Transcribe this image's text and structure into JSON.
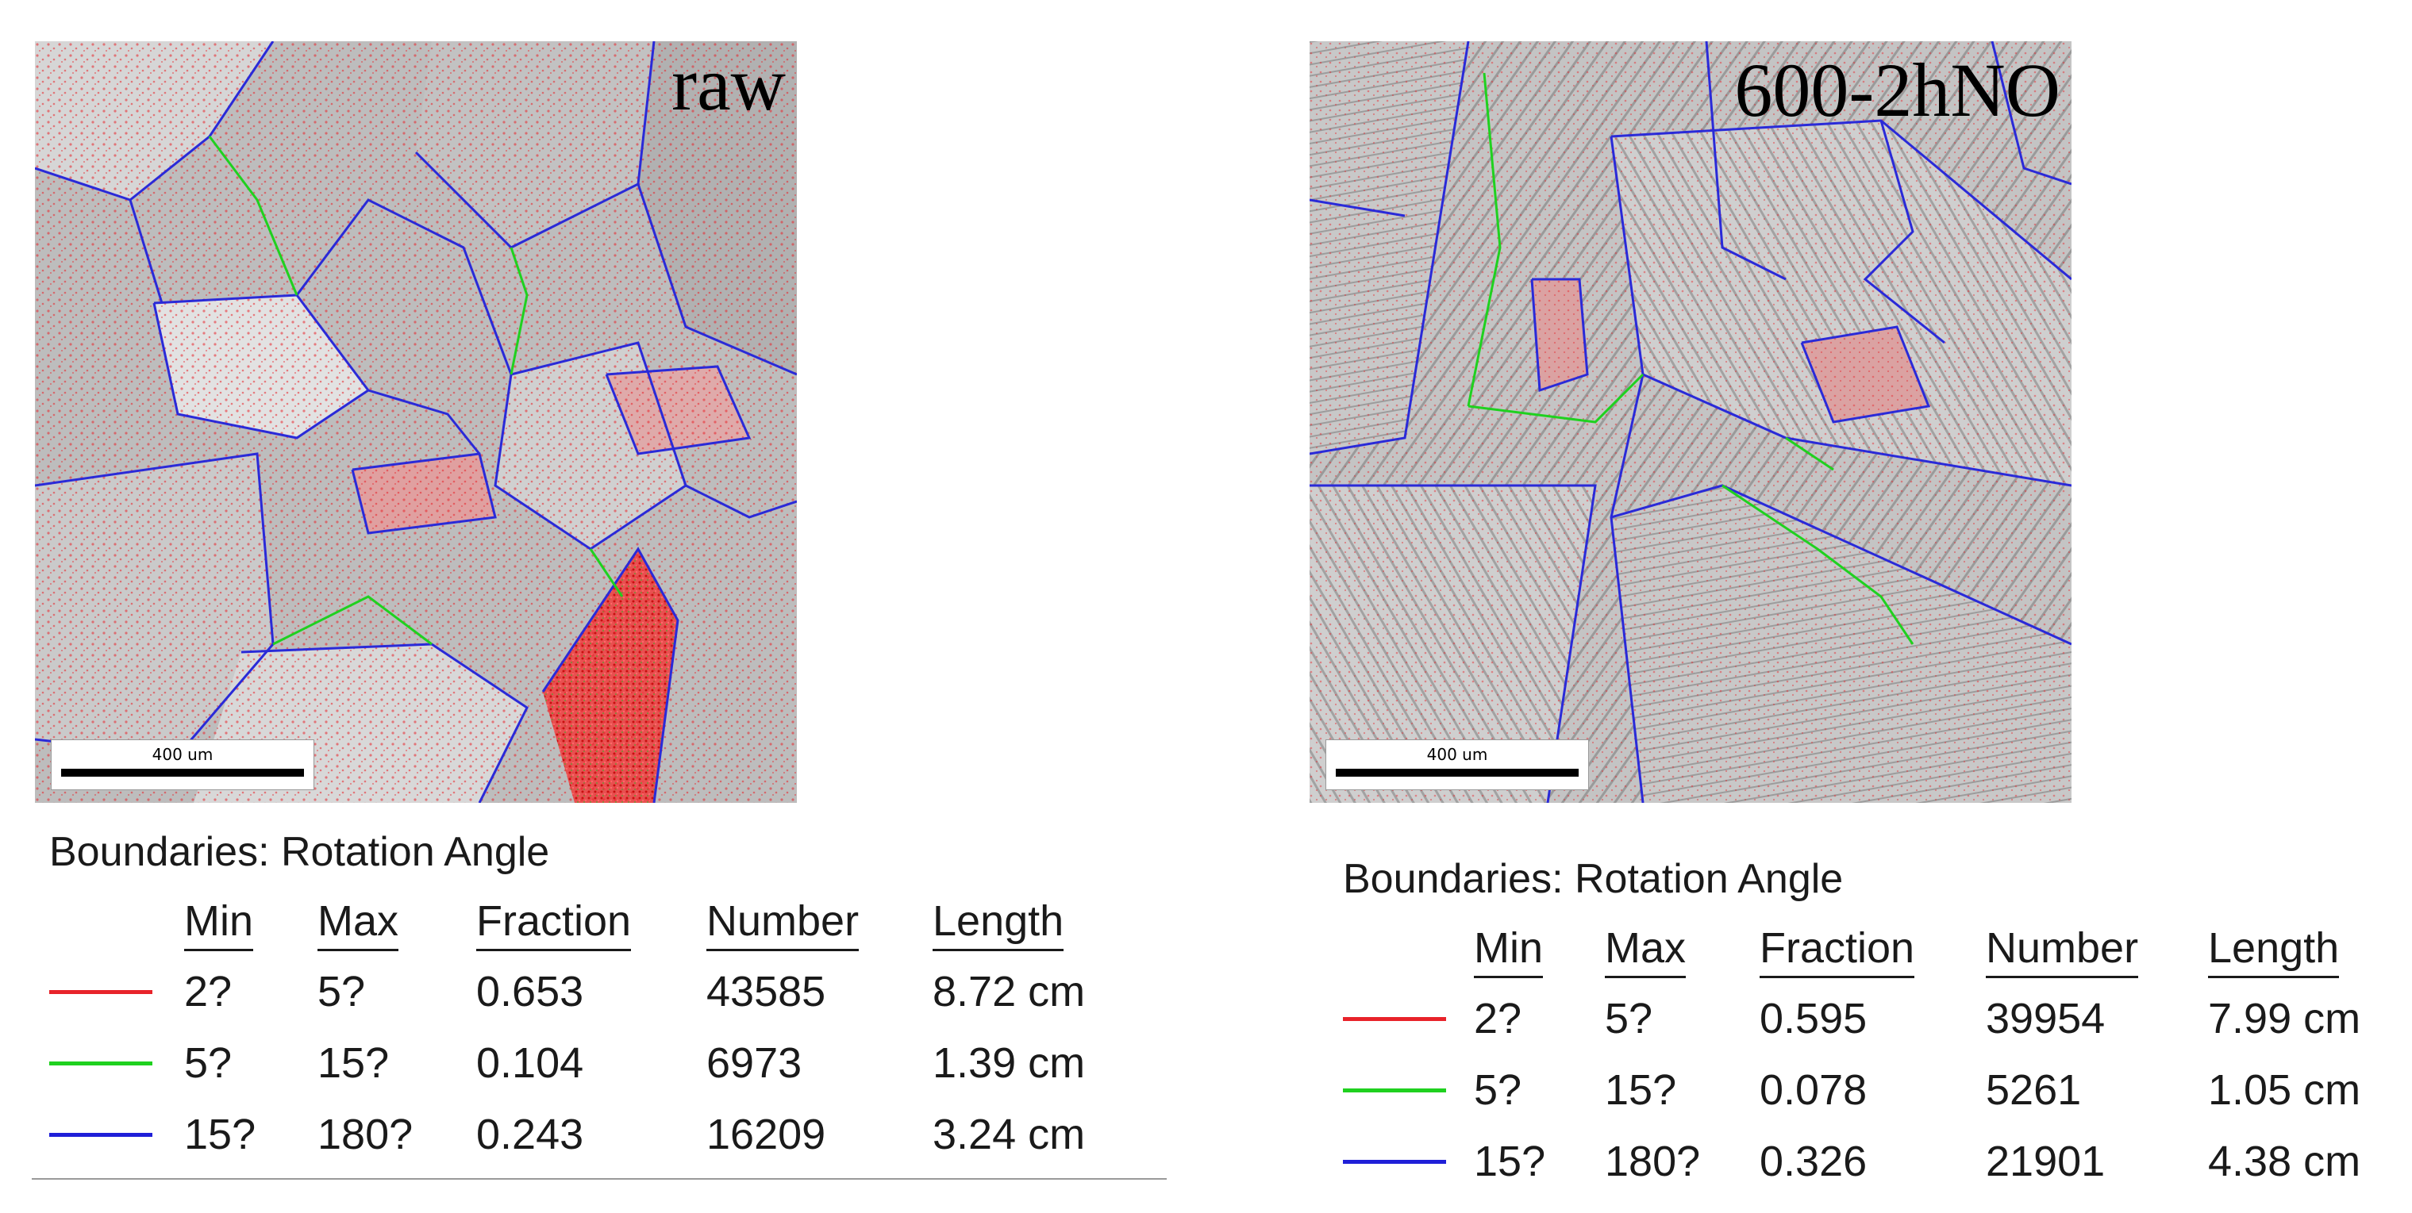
{
  "panels": [
    {
      "sample_label": "raw",
      "scalebar": "400 um",
      "legend_title": "Boundaries: Rotation Angle",
      "columns": [
        "Min",
        "Max",
        "Fraction",
        "Number",
        "Length"
      ],
      "rows": [
        {
          "color": "#e8232a",
          "min": "2?",
          "max": "5?",
          "fraction": "0.653",
          "number": "43585",
          "length": "8.72 cm"
        },
        {
          "color": "#1fd11f",
          "min": "5?",
          "max": "15?",
          "fraction": "0.104",
          "number": "6973",
          "length": "1.39 cm"
        },
        {
          "color": "#1f1fd8",
          "min": "15?",
          "max": "180?",
          "fraction": "0.243",
          "number": "16209",
          "length": "3.24 cm"
        }
      ]
    },
    {
      "sample_label": "600-2hNO",
      "scalebar": "400 um",
      "legend_title": "Boundaries: Rotation Angle",
      "columns": [
        "Min",
        "Max",
        "Fraction",
        "Number",
        "Length"
      ],
      "rows": [
        {
          "color": "#e8232a",
          "min": "2?",
          "max": "5?",
          "fraction": "0.595",
          "number": "39954",
          "length": "7.99 cm"
        },
        {
          "color": "#1fd11f",
          "min": "5?",
          "max": "15?",
          "fraction": "0.078",
          "number": "5261",
          "length": "1.05 cm"
        },
        {
          "color": "#1f1fd8",
          "min": "15?",
          "max": "180?",
          "fraction": "0.326",
          "number": "21901",
          "length": "4.38 cm"
        }
      ]
    }
  ]
}
